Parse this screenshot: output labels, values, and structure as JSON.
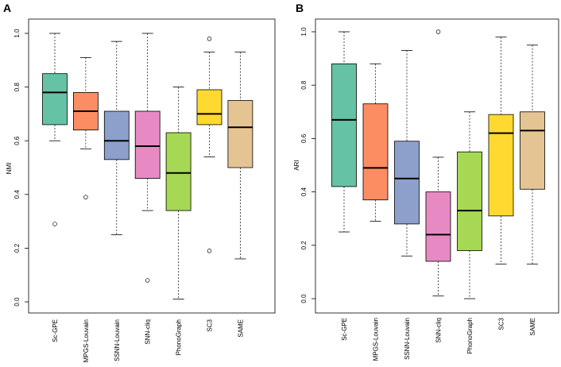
{
  "chart_data": [
    {
      "type": "boxplot",
      "panel_label": "A",
      "ylabel": "NMI",
      "ylim": [
        0,
        1
      ],
      "yticks": [
        "0.0",
        "0.2",
        "0.4",
        "0.6",
        "0.8",
        "1.0"
      ],
      "categories": [
        "Sc-GPE",
        "MPGS-Louvain",
        "SSNN-Louvain",
        "SNN-cliq",
        "PhonoGraph",
        "SC3",
        "SAME"
      ],
      "boxes": [
        {
          "name": "Sc-GPE",
          "min": 0.6,
          "q1": 0.66,
          "median": 0.78,
          "q3": 0.85,
          "max": 1.0,
          "outliers": [
            0.29
          ],
          "color": "#66c2a5"
        },
        {
          "name": "MPGS-Louvain",
          "min": 0.57,
          "q1": 0.64,
          "median": 0.71,
          "q3": 0.78,
          "max": 0.91,
          "outliers": [
            0.39
          ],
          "color": "#fc8d62"
        },
        {
          "name": "SSNN-Louvain",
          "min": 0.25,
          "q1": 0.53,
          "median": 0.6,
          "q3": 0.71,
          "max": 0.97,
          "outliers": [],
          "color": "#8da0cb"
        },
        {
          "name": "SNN-cliq",
          "min": 0.34,
          "q1": 0.46,
          "median": 0.58,
          "q3": 0.71,
          "max": 1.0,
          "outliers": [
            0.08
          ],
          "color": "#e78ac3"
        },
        {
          "name": "PhonoGraph",
          "min": 0.01,
          "q1": 0.34,
          "median": 0.48,
          "q3": 0.63,
          "max": 0.8,
          "outliers": [],
          "color": "#a6d854"
        },
        {
          "name": "SC3",
          "min": 0.54,
          "q1": 0.66,
          "median": 0.7,
          "q3": 0.79,
          "max": 0.93,
          "outliers": [
            0.98,
            0.19
          ],
          "color": "#ffd92f"
        },
        {
          "name": "SAME",
          "min": 0.16,
          "q1": 0.5,
          "median": 0.65,
          "q3": 0.75,
          "max": 0.93,
          "outliers": [],
          "color": "#e5c494"
        }
      ]
    },
    {
      "type": "boxplot",
      "panel_label": "B",
      "ylabel": "ARI",
      "ylim": [
        0,
        1
      ],
      "yticks": [
        "0.0",
        "0.2",
        "0.4",
        "0.6",
        "0.8",
        "1.0"
      ],
      "categories": [
        "Sc-GPE",
        "MPGS-Louvain",
        "SSNN-Louvain",
        "SNN-cliq",
        "PhonoGraph",
        "SC3",
        "SAME"
      ],
      "boxes": [
        {
          "name": "Sc-GPE",
          "min": 0.25,
          "q1": 0.42,
          "median": 0.67,
          "q3": 0.88,
          "max": 1.0,
          "outliers": [],
          "color": "#66c2a5"
        },
        {
          "name": "MPGS-Louvain",
          "min": 0.29,
          "q1": 0.37,
          "median": 0.49,
          "q3": 0.73,
          "max": 0.88,
          "outliers": [],
          "color": "#fc8d62"
        },
        {
          "name": "SSNN-Louvain",
          "min": 0.16,
          "q1": 0.28,
          "median": 0.45,
          "q3": 0.59,
          "max": 0.93,
          "outliers": [],
          "color": "#8da0cb"
        },
        {
          "name": "SNN-cliq",
          "min": 0.01,
          "q1": 0.14,
          "median": 0.24,
          "q3": 0.4,
          "max": 0.53,
          "outliers": [
            1.0
          ],
          "color": "#e78ac3"
        },
        {
          "name": "PhonoGraph",
          "min": 0.0,
          "q1": 0.18,
          "median": 0.33,
          "q3": 0.55,
          "max": 0.7,
          "outliers": [],
          "color": "#a6d854"
        },
        {
          "name": "SC3",
          "min": 0.13,
          "q1": 0.31,
          "median": 0.62,
          "q3": 0.69,
          "max": 0.98,
          "outliers": [],
          "color": "#ffd92f"
        },
        {
          "name": "SAME",
          "min": 0.13,
          "q1": 0.41,
          "median": 0.63,
          "q3": 0.7,
          "max": 0.95,
          "outliers": [],
          "color": "#e5c494"
        }
      ]
    }
  ]
}
